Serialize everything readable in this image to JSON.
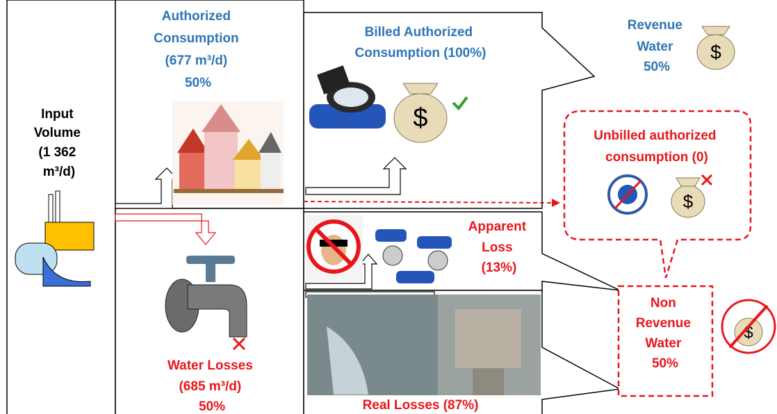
{
  "input_volume": {
    "lines": [
      "Input",
      "Volume",
      "(1 362",
      "m³/d)"
    ]
  },
  "authorized_consumption": {
    "lines": [
      "Authorized",
      "Consumption",
      "(677 m³/d)",
      "50%"
    ]
  },
  "billed_authorized": {
    "lines": [
      "Billed Authorized",
      "Consumption (100%)"
    ]
  },
  "revenue_water": {
    "lines": [
      "Revenue",
      "Water",
      "50%"
    ]
  },
  "unbilled_authorized": {
    "lines": [
      "Unbilled authorized",
      "consumption (0)"
    ]
  },
  "apparent_loss": {
    "lines": [
      "Apparent",
      "Loss",
      "(13%)"
    ]
  },
  "real_losses": {
    "lines": [
      "Real Losses (87%)"
    ]
  },
  "water_losses": {
    "lines": [
      "Water Losses",
      "(685 m³/d)",
      "50%"
    ]
  },
  "non_revenue_water": {
    "lines": [
      "Non",
      "Revenue",
      "Water",
      "50%"
    ]
  }
}
